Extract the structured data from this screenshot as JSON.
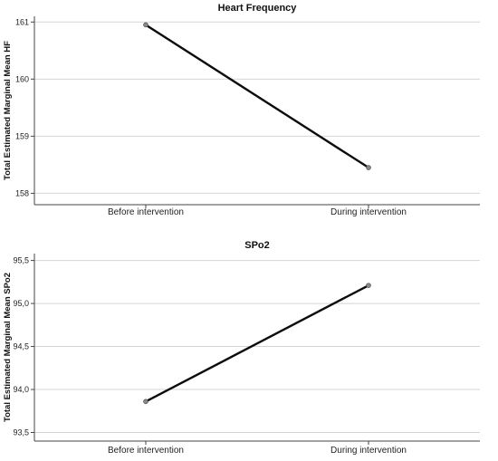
{
  "chart_data": [
    {
      "type": "line",
      "title": "Heart Frequency",
      "xlabel": "",
      "ylabel": "Total Estimated Marginal Mean HF",
      "categories": [
        "Before intervention",
        "During intervention"
      ],
      "series": [
        {
          "values": [
            160.95,
            158.45
          ]
        }
      ],
      "ylim": [
        157.8,
        161.1
      ],
      "yticks": [
        "158",
        "159",
        "160",
        "161"
      ],
      "grid": true
    },
    {
      "type": "line",
      "title": "SPo2",
      "xlabel": "",
      "ylabel": "Total Estimated Marginal Mean SPo2",
      "categories": [
        "Before intervention",
        "During intervention"
      ],
      "series": [
        {
          "values": [
            93.86,
            95.21
          ]
        }
      ],
      "ylim": [
        93.4,
        95.58
      ],
      "yticks": [
        "93,5",
        "94,0",
        "94,5",
        "95,0",
        "95,5"
      ],
      "grid": true
    }
  ]
}
